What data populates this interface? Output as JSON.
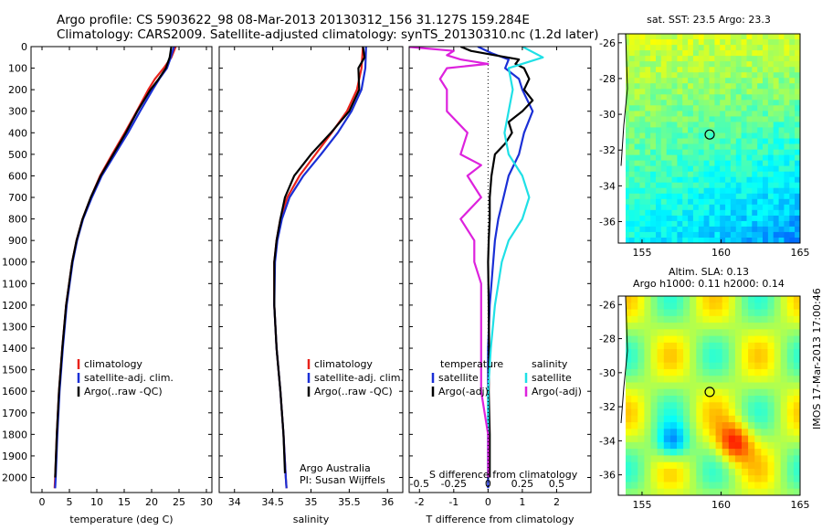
{
  "title_line1": "Argo profile: CS 5903622_98 08-Mar-2013 20130312_156 31.127S 159.284E",
  "title_line2": "Climatology: CARS2009. Satellite-adjusted climatology: synTS_20130310.nc (1.2d later)",
  "credit": "IMOS 17-Mar-2013 17:00:46",
  "colors": {
    "climatology": "#e8221b",
    "satellite": "#1a2fd6",
    "argo": "#000000",
    "sat_sal": "#1fe0e6",
    "argo_sal": "#dd22dd"
  },
  "chart_data": [
    {
      "type": "line",
      "xlabel": "temperature (deg C)",
      "xlim": [
        -2,
        31
      ],
      "xticks": [
        0,
        5,
        10,
        15,
        20,
        25,
        30
      ],
      "ylim": [
        0,
        2070
      ],
      "yticks": [
        0,
        100,
        200,
        300,
        400,
        500,
        600,
        700,
        800,
        900,
        1000,
        1100,
        1200,
        1300,
        1400,
        1500,
        1600,
        1700,
        1800,
        1900,
        2000
      ],
      "legend": [
        "climatology",
        "satellite-adj. clim.",
        "Argo(..raw -QC)"
      ],
      "series": [
        {
          "name": "climatology",
          "color": "#e8221b",
          "depth": [
            0,
            50,
            100,
            150,
            200,
            300,
            400,
            500,
            600,
            700,
            800,
            900,
            1000,
            1200,
            1400,
            1600,
            1800,
            2000,
            2050
          ],
          "values": [
            24.4,
            23.6,
            22.2,
            20.6,
            19.4,
            17.3,
            15.1,
            12.8,
            10.6,
            8.9,
            7.4,
            6.3,
            5.5,
            4.4,
            3.7,
            3.1,
            2.7,
            2.4,
            2.3
          ]
        },
        {
          "name": "satellite-adj. clim.",
          "color": "#1a2fd6",
          "depth": [
            0,
            50,
            100,
            150,
            200,
            300,
            400,
            500,
            600,
            700,
            800,
            900,
            1000,
            1200,
            1400,
            1600,
            1800,
            2000,
            2050
          ],
          "values": [
            24.1,
            23.5,
            22.8,
            21.4,
            20.2,
            17.9,
            15.7,
            13.3,
            10.9,
            9.1,
            7.5,
            6.4,
            5.6,
            4.5,
            3.8,
            3.2,
            2.8,
            2.5,
            2.4
          ]
        },
        {
          "name": "Argo(..raw -QC)",
          "color": "#000000",
          "depth": [
            0,
            50,
            100,
            150,
            200,
            300,
            400,
            500,
            600,
            700,
            800,
            900,
            1000,
            1200,
            1400,
            1600,
            1800,
            2000
          ],
          "values": [
            23.6,
            23.3,
            22.6,
            21.3,
            19.8,
            17.4,
            15.3,
            13.0,
            10.7,
            8.9,
            7.4,
            6.3,
            5.5,
            4.4,
            3.7,
            3.1,
            2.7,
            2.4
          ]
        }
      ]
    },
    {
      "type": "line",
      "xlabel": "salinity",
      "xlim": [
        33.8,
        36.2
      ],
      "xticks": [
        34,
        34.5,
        35,
        35.5,
        36
      ],
      "ylim": [
        0,
        2070
      ],
      "legend": [
        "climatology",
        "satellite-adj. clim.",
        "Argo(..raw -QC)"
      ],
      "annotation": [
        "Argo Australia",
        "PI: Susan Wijffels"
      ],
      "series": [
        {
          "name": "climatology",
          "color": "#e8221b",
          "depth": [
            0,
            100,
            200,
            300,
            400,
            500,
            600,
            700,
            800,
            900,
            1000,
            1200,
            1400,
            1600,
            1800,
            2000,
            2050
          ],
          "values": [
            35.68,
            35.66,
            35.6,
            35.47,
            35.27,
            35.06,
            34.85,
            34.69,
            34.6,
            34.55,
            34.52,
            34.52,
            34.55,
            34.6,
            34.64,
            34.67,
            34.68
          ]
        },
        {
          "name": "satellite-adj. clim.",
          "color": "#1a2fd6",
          "depth": [
            0,
            100,
            200,
            300,
            400,
            500,
            600,
            700,
            800,
            900,
            1000,
            1200,
            1400,
            1600,
            1800,
            2000,
            2050
          ],
          "values": [
            35.72,
            35.71,
            35.66,
            35.53,
            35.35,
            35.13,
            34.9,
            34.72,
            34.62,
            34.56,
            34.53,
            34.52,
            34.55,
            34.6,
            34.64,
            34.67,
            34.68
          ]
        },
        {
          "name": "Argo(..raw -QC)",
          "color": "#000000",
          "depth": [
            0,
            50,
            100,
            200,
            300,
            400,
            500,
            600,
            700,
            800,
            900,
            1000,
            1200,
            1400,
            1600,
            1800,
            1980
          ],
          "values": [
            35.68,
            35.7,
            35.62,
            35.63,
            35.5,
            35.26,
            35.0,
            34.78,
            34.66,
            34.6,
            34.55,
            34.52,
            34.52,
            34.55,
            34.6,
            34.64,
            34.66
          ]
        }
      ]
    },
    {
      "type": "line",
      "xlabel": "T difference from climatology",
      "xlabel2": "S difference from climatology",
      "xlim": [
        -2.3,
        3
      ],
      "xticks": [
        -2,
        -1,
        0,
        1,
        2
      ],
      "xticks2": [
        -0.5,
        -0.25,
        0,
        0.25,
        0.5
      ],
      "ylim": [
        0,
        2070
      ],
      "legend_temp_title": "temperature",
      "legend_sal_title": "salinity",
      "legend": [
        "satellite",
        "Argo(-adj)",
        "satellite",
        "Argo(-adj)"
      ],
      "series": [
        {
          "name": "satellite",
          "color": "#1a2fd6",
          "depth": [
            0,
            30,
            60,
            100,
            150,
            200,
            300,
            400,
            500,
            600,
            700,
            800,
            900,
            1000,
            1200,
            1400,
            1600,
            1800,
            2050
          ],
          "values": [
            -0.3,
            0.1,
            0.6,
            0.5,
            0.9,
            1.0,
            1.3,
            1.05,
            0.9,
            0.6,
            0.45,
            0.3,
            0.2,
            0.15,
            0.05,
            0,
            0,
            0,
            0
          ]
        },
        {
          "name": "Argo(-adj)",
          "color": "#000000",
          "depth": [
            0,
            20,
            40,
            60,
            80,
            100,
            150,
            200,
            250,
            300,
            350,
            400,
            450,
            500,
            600,
            700,
            800,
            900,
            1000,
            1200,
            1400,
            1600,
            1800,
            2000
          ],
          "values": [
            -0.8,
            -0.5,
            0.2,
            0.9,
            0.8,
            1.05,
            1.2,
            1.05,
            1.3,
            1.0,
            0.6,
            0.7,
            0.5,
            0.2,
            0.1,
            0.05,
            0.05,
            0.02,
            0.0,
            0.02,
            0.03,
            0.02,
            0.05,
            0.05
          ]
        },
        {
          "name": "satellite",
          "color": "#1fe0e6",
          "depth": [
            0,
            50,
            100,
            200,
            300,
            400,
            500,
            600,
            700,
            800,
            900,
            1000,
            1200,
            1400,
            1600,
            1800,
            2000
          ],
          "values": [
            0.25,
            0.4,
            0.15,
            0.18,
            0.15,
            0.12,
            0.15,
            0.25,
            0.3,
            0.25,
            0.15,
            0.1,
            0.05,
            0.02,
            0.0,
            0.0,
            0.0
          ]
        },
        {
          "name": "Argo(-adj)",
          "color": "#dd22dd",
          "depth": [
            0,
            20,
            40,
            60,
            80,
            100,
            150,
            200,
            300,
            400,
            500,
            550,
            600,
            700,
            800,
            900,
            1000,
            1100,
            1200,
            1400,
            1600,
            1800,
            2000
          ],
          "values": [
            -0.6,
            -0.25,
            -0.3,
            -0.2,
            0.0,
            -0.3,
            -0.35,
            -0.3,
            -0.3,
            -0.15,
            -0.2,
            -0.05,
            -0.15,
            -0.05,
            -0.2,
            -0.1,
            -0.1,
            -0.05,
            -0.05,
            -0.05,
            -0.05,
            0.0,
            0.0
          ]
        }
      ]
    },
    {
      "type": "heatmap",
      "title": "sat. SST: 23.5  Argo: 23.3",
      "xlim": [
        153.5,
        165
      ],
      "ylim": [
        -37.2,
        -25.5
      ],
      "xticks": [
        155,
        160,
        165
      ],
      "yticks": [
        -26,
        -28,
        -30,
        -32,
        -34,
        -36
      ],
      "marker": {
        "lon": 159.28,
        "lat": -31.13
      }
    },
    {
      "type": "heatmap",
      "title": "Altim. SLA: 0.13",
      "subtitle": "Argo h1000: 0.11 h2000: 0.14",
      "xlim": [
        153.5,
        165
      ],
      "ylim": [
        -37.2,
        -25.5
      ],
      "xticks": [
        155,
        160,
        165
      ],
      "yticks": [
        -26,
        -28,
        -30,
        -32,
        -34,
        -36
      ],
      "marker": {
        "lon": 159.28,
        "lat": -31.13
      }
    }
  ]
}
